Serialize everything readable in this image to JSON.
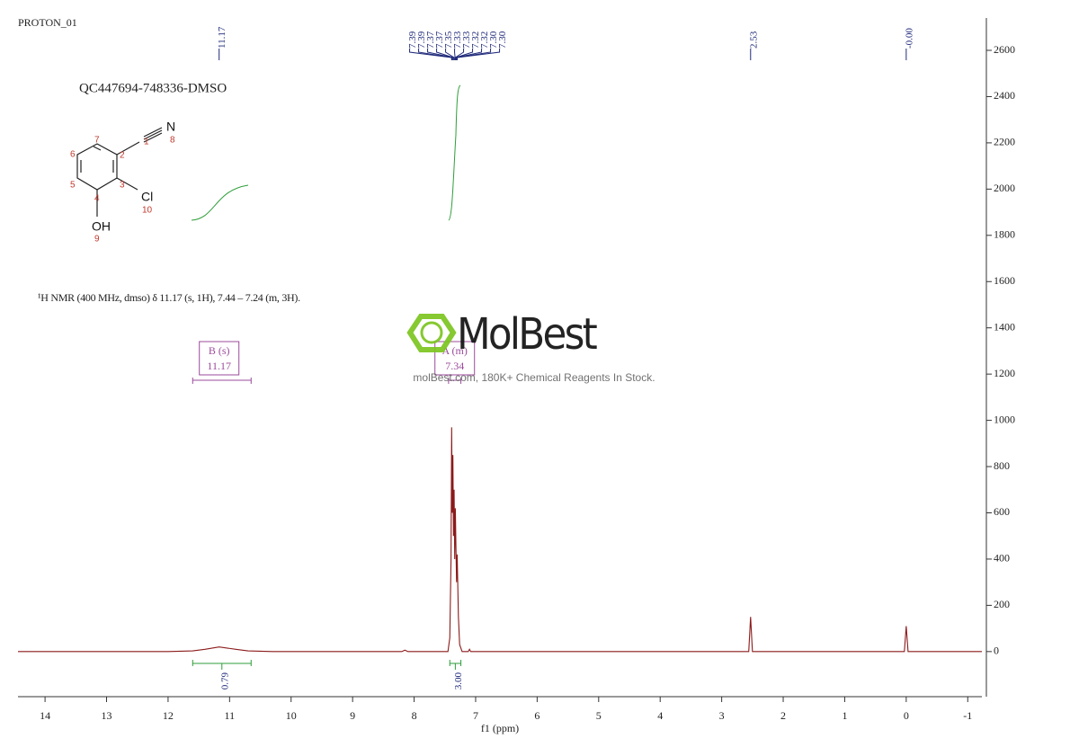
{
  "chart_data": {
    "type": "line",
    "title": "PROTON_01",
    "sample": "QC447694-748336-DMSO",
    "description": "¹H NMR (400 MHz, dmso) δ 11.17 (s, 1H), 7.44 – 7.24 (m, 3H).",
    "x_label": "f1 (ppm)",
    "color": "#8b1a1a",
    "x": [
      14.44,
      12.0,
      11.6,
      11.4,
      11.17,
      10.9,
      10.7,
      10.3,
      8.2,
      8.15,
      8.1,
      7.45,
      7.42,
      7.4,
      7.39,
      7.38,
      7.37,
      7.36,
      7.35,
      7.34,
      7.33,
      7.32,
      7.31,
      7.3,
      7.28,
      7.26,
      7.22,
      7.12,
      7.1,
      7.08,
      2.56,
      2.53,
      2.5,
      0.03,
      0.0,
      -0.03,
      -1.23
    ],
    "values": [
      0,
      0,
      3,
      10,
      20,
      10,
      3,
      0,
      0,
      6,
      0,
      0,
      60,
      400,
      970,
      600,
      850,
      500,
      700,
      400,
      620,
      450,
      300,
      420,
      150,
      30,
      0,
      0,
      10,
      0,
      0,
      150,
      0,
      0,
      110,
      0,
      0
    ],
    "xlim": [
      14.44,
      -1.23
    ],
    "xticks": [
      14,
      13,
      12,
      11,
      10,
      9,
      8,
      7,
      6,
      5,
      4,
      3,
      2,
      1,
      0,
      -1
    ],
    "ylim": [
      -195,
      2740
    ],
    "yticks": [
      0,
      200,
      400,
      600,
      800,
      1000,
      1200,
      1400,
      1600,
      1800,
      2000,
      2200,
      2400,
      2600
    ],
    "peaks": [
      {
        "value": 11.17,
        "label": "11.17"
      },
      {
        "value": 7.39,
        "label": "7.39"
      },
      {
        "value": 7.386,
        "label": "7.39"
      },
      {
        "value": 7.37,
        "label": "7.37"
      },
      {
        "value": 7.366,
        "label": "7.37"
      },
      {
        "value": 7.35,
        "label": "7.35"
      },
      {
        "value": 7.334,
        "label": "7.33"
      },
      {
        "value": 7.33,
        "label": "7.33"
      },
      {
        "value": 7.32,
        "label": "7.32"
      },
      {
        "value": 7.316,
        "label": "7.32"
      },
      {
        "value": 7.304,
        "label": "7.30"
      },
      {
        "value": 7.3,
        "label": "7.30"
      },
      {
        "value": 2.53,
        "label": "2.53"
      },
      {
        "value": 0,
        "label": "-0.00"
      }
    ],
    "integrals": [
      {
        "range": [
          11.6,
          10.65
        ],
        "value": 0.79
      },
      {
        "range": [
          7.42,
          7.24
        ],
        "value": {
          "value": 3,
          "label": "3.00"
        }
      }
    ],
    "multiplets": [
      {
        "name": "B (s)",
        "shift": 11.17,
        "range": [
          11.6,
          10.65
        ]
      },
      {
        "name": "A (m)",
        "shift": 7.34,
        "range": [
          7.44,
          7.24
        ]
      }
    ],
    "peak_color": "#1f2a7a",
    "integral_color": "#2e9e3a",
    "multiplet_color": "#9b4b9b"
  },
  "structure": {
    "atoms": [
      "N",
      "Cl",
      "OH"
    ],
    "locants": [
      "1",
      "2",
      "3",
      "4",
      "5",
      "6",
      "7",
      "8",
      "9",
      "10"
    ]
  },
  "watermark": {
    "brand": "MolBest",
    "tagline": "molBest.com, 180K+ Chemical Reagents In Stock."
  }
}
